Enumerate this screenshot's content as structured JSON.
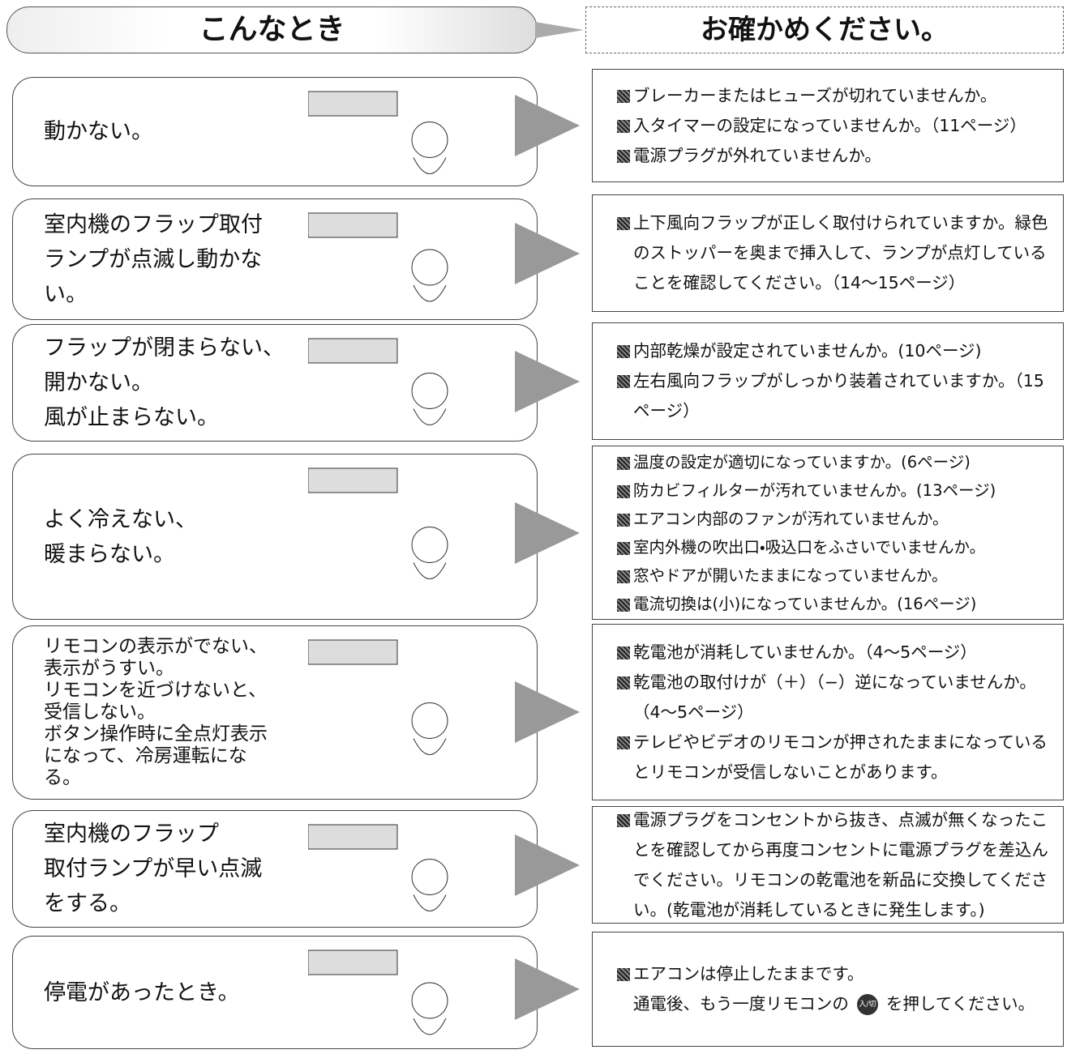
{
  "header": {
    "left": "こんなとき",
    "right": "お確かめください。"
  },
  "rows": [
    {
      "problem": [
        "動かない。"
      ],
      "checks": [
        "ブレーカーまたはヒューズが切れていませんか。",
        "入タイマーの設定になっていませんか。（11ページ）",
        "電源プラグが外れていませんか。"
      ]
    },
    {
      "problem": [
        "室内機のフラップ取付",
        "ランプが点滅し動かな",
        "い。"
      ],
      "checks": [
        "上下風向フラップが正しく取付けられていますか。緑色のストッパーを奥まで挿入して、ランプが点灯していることを確認してください。（14〜15ページ）"
      ]
    },
    {
      "problem": [
        "フラップが閉まらない、",
        "開かない。",
        "風が止まらない。"
      ],
      "checks": [
        "内部乾燥が設定されていませんか。(10ページ)",
        "左右風向フラップがしっかり装着されていますか。（15ページ）"
      ]
    },
    {
      "problem": [
        "よく冷えない、",
        "暖まらない。"
      ],
      "checks": [
        "温度の設定が適切になっていますか。(6ページ)",
        "防カビフィルターが汚れていませんか。(13ページ)",
        "エアコン内部のファンが汚れていませんか。",
        "室内外機の吹出口・吸込口をふさいでいませんか。",
        "窓やドアが開いたままになっていませんか。",
        "電流切換は(小)になっていませんか。(16ページ)"
      ]
    },
    {
      "problem": [
        "リモコンの表示がでない、表示がうすい。",
        "リモコンを近づけないと、受信しない。",
        "ボタン操作時に全点灯表示になって、冷房運転になる。"
      ],
      "checks": [
        "乾電池が消耗していませんか。（4〜5ページ）",
        "乾電池の取付けが（＋）（−）逆になっていませんか。（4〜5ページ）",
        "テレビやビデオのリモコンが押されたままになっているとリモコンが受信しないことがあります。"
      ]
    },
    {
      "problem": [
        "室内機のフラップ",
        "取付ランプが早い点滅",
        "をする。"
      ],
      "checks": [
        "電源プラグをコンセントから抜き、点滅が無くなったことを確認してから再度コンセントに電源プラグを差込んでください。リモコンの乾電池を新品に交換してください。(乾電池が消耗しているときに発生します。)"
      ]
    },
    {
      "problem": [
        "停電があったとき。"
      ],
      "checks": [
        "エアコンは停止したままです。"
      ],
      "note": {
        "before": "通電後、もう一度リモコンの",
        "button": "入/切",
        "after": "を押してください。"
      }
    }
  ]
}
